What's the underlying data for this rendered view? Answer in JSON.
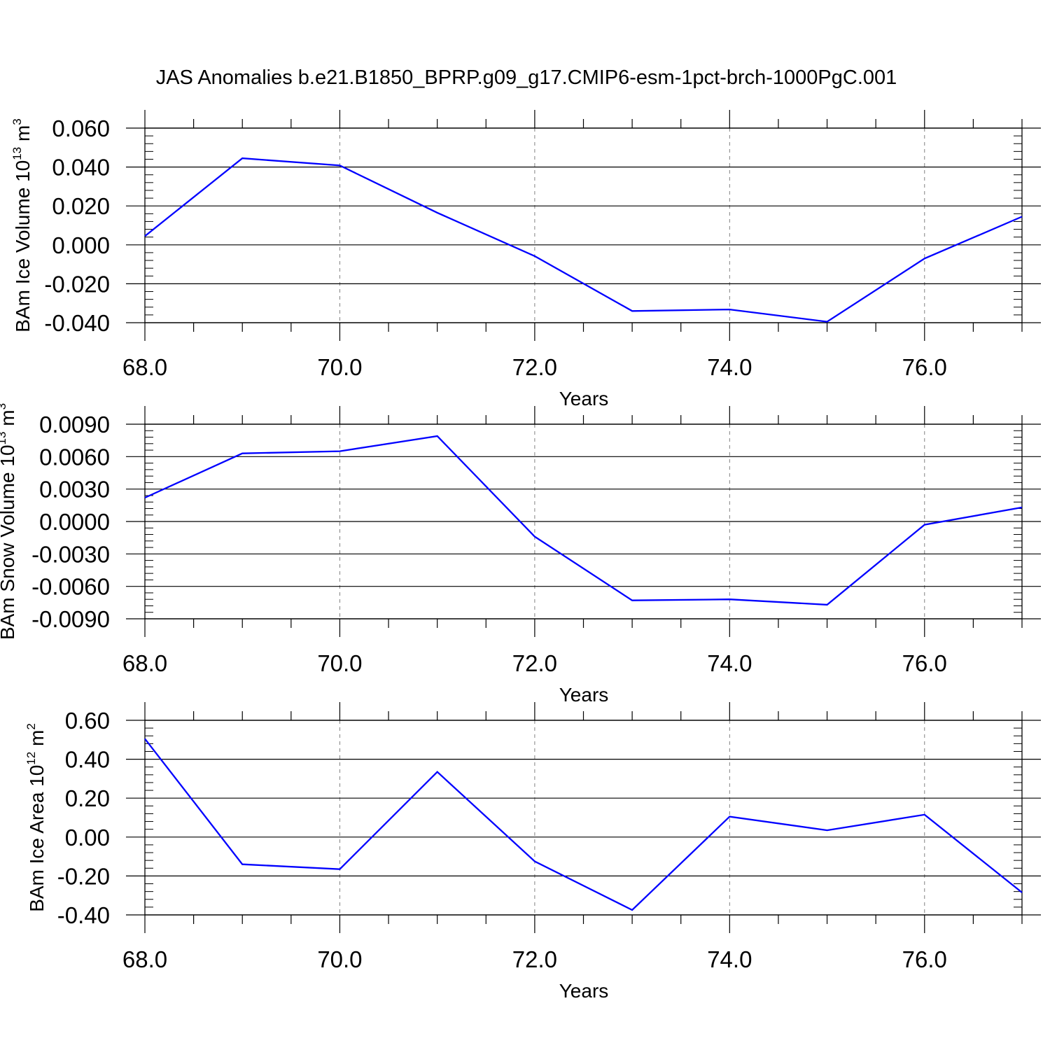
{
  "figure": {
    "title": "JAS Anomalies b.e21.B1850_BPRP.g09_g17.CMIP6-esm-1pct-brch-1000PgC.001",
    "line_color": "#0000ff",
    "grid_color": "#808080",
    "axis_color": "#000000"
  },
  "chart_data": [
    {
      "type": "line",
      "xlabel": "Years",
      "ylabel": {
        "main": "BAm Ice Volume 10",
        "sup": "13",
        "unit": "m",
        "unit_sup": "3"
      },
      "x": [
        68,
        69,
        70,
        71,
        72,
        73,
        74,
        75,
        76,
        77
      ],
      "series": [
        {
          "values": [
            0.0045,
            0.0445,
            0.0408,
            0.0165,
            -0.0058,
            -0.034,
            -0.0332,
            -0.0395,
            -0.007,
            0.0145
          ]
        }
      ],
      "xlim": [
        68,
        77
      ],
      "ylim": [
        -0.04,
        0.06
      ],
      "xticks": [
        68,
        70,
        72,
        74,
        76
      ],
      "xtick_labels": [
        "68.0",
        "70.0",
        "72.0",
        "74.0",
        "76.0"
      ],
      "yticks": [
        -0.04,
        -0.02,
        0.0,
        0.02,
        0.04,
        0.06
      ],
      "ytick_labels": [
        "-0.040",
        "-0.020",
        "0.000",
        "0.020",
        "0.040",
        "0.060"
      ],
      "grid": "vertical dashed at major x ticks"
    },
    {
      "type": "line",
      "xlabel": "Years",
      "ylabel": {
        "main": "BAm Snow Volume 10",
        "sup": "13",
        "unit": "m",
        "unit_sup": "3"
      },
      "x": [
        68,
        69,
        70,
        71,
        72,
        73,
        74,
        75,
        76,
        77
      ],
      "series": [
        {
          "values": [
            0.0022,
            0.0063,
            0.0065,
            0.0079,
            -0.0014,
            -0.0073,
            -0.0072,
            -0.0077,
            -0.0003,
            0.0013
          ]
        }
      ],
      "xlim": [
        68,
        77
      ],
      "ylim": [
        -0.009,
        0.009
      ],
      "xticks": [
        68,
        70,
        72,
        74,
        76
      ],
      "xtick_labels": [
        "68.0",
        "70.0",
        "72.0",
        "74.0",
        "76.0"
      ],
      "yticks": [
        -0.009,
        -0.006,
        -0.003,
        0.0,
        0.003,
        0.006,
        0.009
      ],
      "ytick_labels": [
        "-0.0090",
        "-0.0060",
        "-0.0030",
        "0.0000",
        "0.0030",
        "0.0060",
        "0.0090"
      ],
      "grid": "vertical dashed at major x ticks"
    },
    {
      "type": "line",
      "xlabel": "Years",
      "ylabel": {
        "main": "BAm Ice Area 10",
        "sup": "12",
        "unit": "m",
        "unit_sup": "2"
      },
      "x": [
        68,
        69,
        70,
        71,
        72,
        73,
        74,
        75,
        76,
        77
      ],
      "series": [
        {
          "values": [
            0.505,
            -0.14,
            -0.165,
            0.335,
            -0.125,
            -0.375,
            0.105,
            0.035,
            0.115,
            -0.285
          ]
        }
      ],
      "xlim": [
        68,
        77
      ],
      "ylim": [
        -0.4,
        0.6
      ],
      "xticks": [
        68,
        70,
        72,
        74,
        76
      ],
      "xtick_labels": [
        "68.0",
        "70.0",
        "72.0",
        "74.0",
        "76.0"
      ],
      "yticks": [
        -0.4,
        -0.2,
        0.0,
        0.2,
        0.4,
        0.6
      ],
      "ytick_labels": [
        "-0.40",
        "-0.20",
        "0.00",
        "0.20",
        "0.40",
        "0.60"
      ],
      "grid": "vertical dashed at major x ticks"
    }
  ]
}
